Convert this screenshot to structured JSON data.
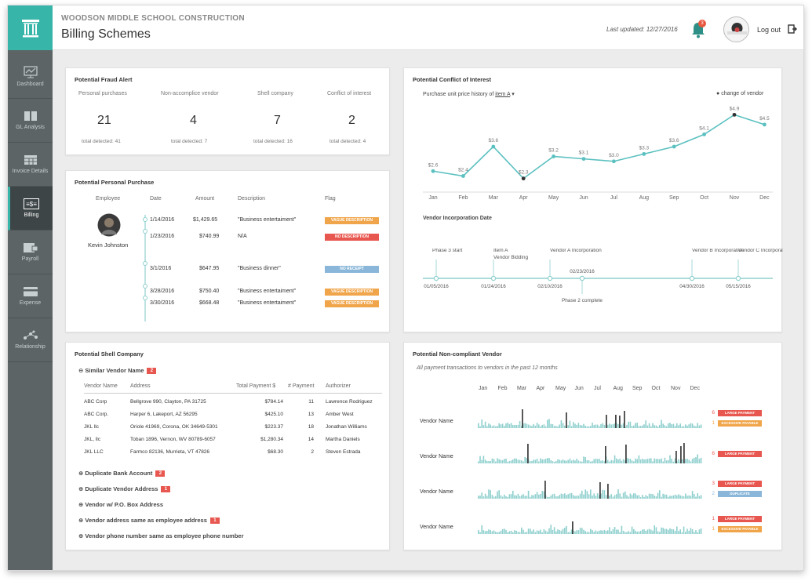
{
  "header": {
    "project": "WOODSON MIDDLE SCHOOL CONSTRUCTION",
    "title": "Billing Schemes",
    "last_updated": "Last updated: 12/27/2016",
    "notification_count": "3",
    "logout_label": "Log out"
  },
  "sidebar": {
    "items": [
      {
        "label": "Dashboard",
        "icon": "chart-icon"
      },
      {
        "label": "GL Analysis",
        "icon": "book-icon"
      },
      {
        "label": "Invoice Details",
        "icon": "table-icon"
      },
      {
        "label": "Billing",
        "icon": "billing-icon"
      },
      {
        "label": "Payroll",
        "icon": "wallet-icon"
      },
      {
        "label": "Expense",
        "icon": "card-icon"
      },
      {
        "label": "Relationship",
        "icon": "network-icon"
      }
    ],
    "active": "Billing"
  },
  "fraud_alert": {
    "title": "Potential Fraud Alert",
    "stats": [
      {
        "label": "Personal purchases",
        "value": "21",
        "total": "total detected: 41"
      },
      {
        "label": "Non-accomplice vendor",
        "value": "4",
        "total": "total detected: 7"
      },
      {
        "label": "Shell company",
        "value": "7",
        "total": "total detected: 16"
      },
      {
        "label": "Conflict of interest",
        "value": "2",
        "total": "total detected: 4"
      }
    ]
  },
  "personal_purchase": {
    "title": "Potential Personal Purchase",
    "columns": [
      "Employee",
      "Date",
      "Amount",
      "Description",
      "Flag"
    ],
    "employee": "Kevin Johnston",
    "rows": [
      {
        "date": "1/14/2016",
        "amount": "$1,429.65",
        "description": "\"Business entertaiment\"",
        "flag": "VAGUE DESCRIPTION",
        "flag_color": "#f0a54a"
      },
      {
        "date": "1/23/2016",
        "amount": "$740.99",
        "description": "N/A",
        "flag": "NO DESCRIPTION",
        "flag_color": "#e8574f"
      },
      {
        "date": "3/1/2016",
        "amount": "$647.95",
        "description": "\"Business dinner\"",
        "flag": "NO RECEIPT",
        "flag_color": "#8ab7d9"
      },
      {
        "date": "3/28/2016",
        "amount": "$750.40",
        "description": "\"Business entertaiment\"",
        "flag": "VAGUE DESCRIPTION",
        "flag_color": "#f0a54a"
      },
      {
        "date": "3/30/2016",
        "amount": "$668.48",
        "description": "\"Business entertaiment\"",
        "flag": "VAGUE DESCRIPTION",
        "flag_color": "#f0a54a"
      }
    ]
  },
  "shell_company": {
    "title": "Potential Shell Company",
    "similar_vendor": {
      "label": "Similar Vendor Name",
      "count": "2"
    },
    "columns": [
      "Vendor Name",
      "Address",
      "Total Payment $",
      "# Payment",
      "Authorizer"
    ],
    "rows": [
      [
        "ABC Corp",
        "Bellgrove 990, Clayton, PA 31725",
        "$784.14",
        "11",
        "Lawrence Rodriguez"
      ],
      [
        "ABC Corp.",
        "Harper 6, Lakeport, AZ 56295",
        "$425.10",
        "13",
        "Amber West"
      ],
      [
        "JKL llc",
        "Oriole 41969, Corona, OK 34649-5301",
        "$223.37",
        "18",
        "Jonathan Williams"
      ],
      [
        "JKL, llc",
        "Toban 1896, Vernon, WV 80789-6057",
        "$1,280.34",
        "14",
        "Martha Daniels"
      ],
      [
        "JKL LLC",
        "Farmco 82136, Murrieta, VT 47826",
        "$68.30",
        "2",
        "Steven Estrada"
      ]
    ],
    "collapsed": [
      {
        "label": "Duplicate Bank Account",
        "count": "2"
      },
      {
        "label": "Duplicate Vendor Address",
        "count": "1"
      },
      {
        "label": "Vendor w/ P.O. Box Address",
        "count": ""
      },
      {
        "label": "Vendor address same as employee address",
        "count": "1"
      },
      {
        "label": "Vendor phone number same as employee phone number",
        "count": ""
      }
    ]
  },
  "conflict_of_interest": {
    "title": "Potential Conflict of Interest",
    "subtitle_prefix": "Purchase unit price history of",
    "item_link": "item A",
    "legend": "change of vendor",
    "timeline_title": "Vendor Incorporation Date",
    "timeline_events": [
      {
        "date": "01/05/2016",
        "label": "Phase 3 start"
      },
      {
        "date": "01/24/2016",
        "label": "Item A Vendor Bidding"
      },
      {
        "date": "02/10/2016",
        "label": "Vendor A Incorporation"
      },
      {
        "date": "02/23/2016",
        "label": "Phase 2 complete"
      },
      {
        "date": "04/30/2016",
        "label": "Vendor B Incorporation"
      },
      {
        "date": "05/15/2016",
        "label": "Vendor C Incorporation"
      }
    ]
  },
  "non_compliant": {
    "title": "Potential Non-compliant Vendor",
    "subtitle": "All payment transactions to vendors in the past 12 months",
    "months": [
      "Jan",
      "Feb",
      "Mar",
      "Apr",
      "May",
      "Jun",
      "Jul",
      "Aug",
      "Sep",
      "Oct",
      "Nov",
      "Dec"
    ],
    "vendors": [
      {
        "label": "Vendor Name",
        "tags": [
          {
            "count": "6",
            "text": "LARGE PAYMENT",
            "color": "#e8574f"
          },
          {
            "count": "1",
            "text": "EXCESSIVE PAYABLE",
            "color": "#f0a54a"
          }
        ]
      },
      {
        "label": "Vendor Name",
        "tags": [
          {
            "count": "6",
            "text": "LARGE PAYMENT",
            "color": "#e8574f"
          }
        ]
      },
      {
        "label": "Vendor Name",
        "tags": [
          {
            "count": "3",
            "text": "LARGE PAYMENT",
            "color": "#e8574f"
          },
          {
            "count": "2",
            "text": "DUPLICATE",
            "color": "#8ab7d9"
          }
        ]
      },
      {
        "label": "Vendor Name",
        "tags": [
          {
            "count": "1",
            "text": "LARGE PAYMENT",
            "color": "#e8574f"
          },
          {
            "count": "1",
            "text": "EXCESSIVE PAYABLE",
            "color": "#f0a54a"
          }
        ]
      }
    ]
  },
  "chart_data": {
    "type": "line",
    "categories": [
      "Jan",
      "Feb",
      "Mar",
      "Apr",
      "May",
      "Jun",
      "Jul",
      "Aug",
      "Sep",
      "Oct",
      "Nov",
      "Dec"
    ],
    "values": [
      2.6,
      2.4,
      3.6,
      2.3,
      3.2,
      3.1,
      3.0,
      3.3,
      3.6,
      4.1,
      4.9,
      4.5
    ],
    "labels": [
      "$2.6",
      "$2.4",
      "$3.6",
      "$2.3",
      "$3.2",
      "$3.1",
      "$3.0",
      "$3.3",
      "$3.6",
      "$4.1",
      "$4.9",
      "$4.5"
    ],
    "vendor_change_points": [
      "Apr",
      "Nov"
    ],
    "ylim": [
      2.0,
      5.2
    ],
    "color": "#5bc0c0"
  },
  "colors": {
    "accent": "#36b5a8",
    "teal": "#5bc0c0",
    "red": "#e8574f",
    "orange": "#f0a54a",
    "blue": "#8ab7d9",
    "sidebar": "#5c6466"
  }
}
